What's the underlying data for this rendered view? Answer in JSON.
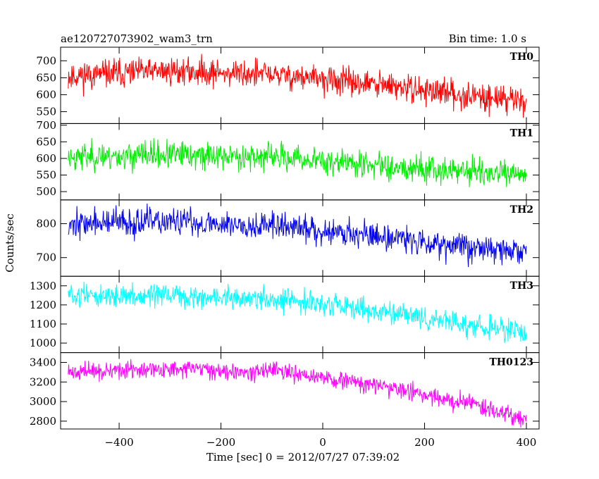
{
  "chart_data": {
    "type": "line",
    "title": "ae120727073902_wam3_trn",
    "subtitle": "Bin time: 1.0 s",
    "xlabel": "Time [sec] 0 = 2012/07/27 07:39:02",
    "ylabel": "Counts/sec",
    "xlim": [
      -515,
      425
    ],
    "x_ticks": [
      -400,
      -200,
      0,
      200,
      400
    ],
    "x_tick_labels": [
      "−400",
      "−200",
      "0",
      "200",
      "400"
    ],
    "grid": false,
    "panels": [
      {
        "name": "TH0",
        "color": "#ff0000",
        "ylim": [
          515,
          740
        ],
        "y_ticks": [
          550,
          600,
          650,
          700
        ],
        "y_tick_labels": [
          "550",
          "600",
          "650",
          "700"
        ],
        "trend_x": [
          -500,
          -300,
          -100,
          100,
          300,
          400
        ],
        "trend_y": [
          655,
          670,
          660,
          630,
          595,
          585
        ],
        "noise": 28,
        "seed": 11
      },
      {
        "name": "TH1",
        "color": "#00ee00",
        "ylim": [
          475,
          705
        ],
        "y_ticks": [
          500,
          550,
          600,
          650,
          700
        ],
        "y_tick_labels": [
          "500",
          "550",
          "600",
          "650",
          "700"
        ],
        "trend_x": [
          -500,
          -300,
          -100,
          100,
          300,
          400
        ],
        "trend_y": [
          605,
          610,
          605,
          580,
          560,
          545
        ],
        "noise": 28,
        "seed": 23
      },
      {
        "name": "TH2",
        "color": "#0000ee",
        "ylim": [
          645,
          870
        ],
        "y_ticks": [
          700,
          800
        ],
        "y_tick_labels": [
          "700",
          "800"
        ],
        "trend_x": [
          -500,
          -300,
          -100,
          100,
          300,
          400
        ],
        "trend_y": [
          800,
          805,
          795,
          765,
          730,
          715
        ],
        "noise": 28,
        "seed": 37
      },
      {
        "name": "TH3",
        "color": "#00ffff",
        "ylim": [
          950,
          1350
        ],
        "y_ticks": [
          1000,
          1100,
          1200,
          1300
        ],
        "y_tick_labels": [
          "1000",
          "1100",
          "1200",
          "1300"
        ],
        "trend_x": [
          -500,
          -300,
          -100,
          100,
          300,
          400
        ],
        "trend_y": [
          1250,
          1245,
          1230,
          1170,
          1090,
          1050
        ],
        "noise": 40,
        "seed": 51
      },
      {
        "name": "TH0123",
        "color": "#ff00ff",
        "ylim": [
          2720,
          3500
        ],
        "y_ticks": [
          2800,
          3000,
          3200,
          3400
        ],
        "y_tick_labels": [
          "2800",
          "3000",
          "3200",
          "3400"
        ],
        "trend_x": [
          -500,
          -300,
          -100,
          100,
          300,
          400
        ],
        "trend_y": [
          3300,
          3330,
          3310,
          3170,
          2970,
          2820
        ],
        "noise": 60,
        "seed": 71
      }
    ]
  }
}
